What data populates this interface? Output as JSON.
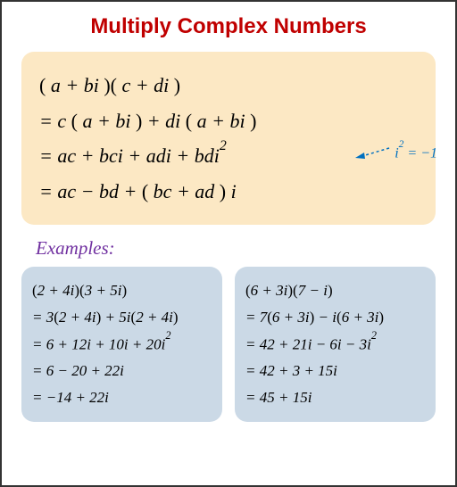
{
  "title": "Multiply Complex Numbers",
  "title_color": "#c00000",
  "main_box_bg": "#fce8c4",
  "example_box_bg": "#cbd9e6",
  "examples_label": "Examples:",
  "examples_label_color": "#7030a0",
  "annotation_color": "#0070c0",
  "derivation": {
    "line1_html": "<span class='paren'>(</span> <i>a</i> + <i>bi</i> <span class='paren'>)(</span> <i>c</i> + <i>di</i> <span class='paren'>)</span>",
    "line2_html": "= <i>c</i> <span class='paren'>(</span> <i>a</i> + <i>bi</i> <span class='paren'>)</span> + <i>di</i> <span class='paren'>(</span> <i>a</i> + <i>bi</i> <span class='paren'>)</span>",
    "line3_html": "= <i>ac</i> + <i>bci</i> + <i>adi</i> + <i>bdi</i><sup>2</sup>",
    "line4_html": "= <i>ac</i> − <i>bd</i> + <span class='paren'>(</span> <i>bc</i> + <i>ad</i> <span class='paren'>)</span> <i>i</i>"
  },
  "annotation_html": "<i>i</i><sup>2</sup> = −1",
  "example1": {
    "line1_html": "<span class='paren'>(</span>2 + 4<i>i</i><span class='paren'>)(</span>3 + 5<i>i</i><span class='paren'>)</span>",
    "line2_html": "= 3<span class='paren'>(</span>2 + 4<i>i</i><span class='paren'>)</span> + 5<i>i</i><span class='paren'>(</span>2 + 4<i>i</i><span class='paren'>)</span>",
    "line3_html": "= 6 + 12<i>i</i> + 10<i>i</i> + 20<i>i</i><sup>2</sup>",
    "line4_html": "= 6 − 20 + 22<i>i</i>",
    "line5_html": "= −14 + 22<i>i</i>"
  },
  "example2": {
    "line1_html": "<span class='paren'>(</span>6 + 3<i>i</i><span class='paren'>)(</span>7 − <i>i</i><span class='paren'>)</span>",
    "line2_html": "= 7<span class='paren'>(</span>6 + 3<i>i</i><span class='paren'>)</span> − <i>i</i><span class='paren'>(</span>6 + 3<i>i</i><span class='paren'>)</span>",
    "line3_html": "= 42 + 21<i>i</i> − 6<i>i</i> − 3<i>i</i><sup>2</sup>",
    "line4_html": "= 42 + 3 + 15<i>i</i>",
    "line5_html": "= 45 + 15<i>i</i>"
  }
}
